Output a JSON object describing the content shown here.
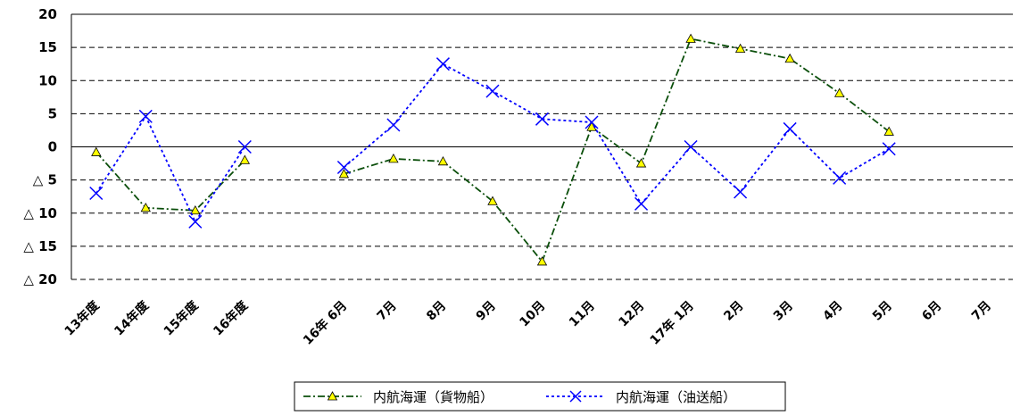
{
  "chart_data": {
    "type": "line",
    "categories": [
      "13年度",
      "14年度",
      "15年度",
      "16年度",
      "",
      "16年 6月",
      "7月",
      "8月",
      "9月",
      "10月",
      "11月",
      "12月",
      "17年 1月",
      "2月",
      "3月",
      "4月",
      "5月",
      "6月",
      "7月"
    ],
    "ylim": [
      -20,
      20
    ],
    "yticks": [
      20,
      15,
      10,
      5,
      0,
      -5,
      -10,
      -15,
      -20
    ],
    "ytick_labels": [
      "20",
      "15",
      "10",
      "5",
      "0",
      "△ 5",
      "△ 10",
      "△ 15",
      "△ 20"
    ],
    "grid": "horizontal dashed",
    "legend_position": "bottom",
    "series": [
      {
        "name": "内航海運（貨物船）",
        "color": "#0b4f0b",
        "marker": "triangle",
        "marker_color": "#ffff00",
        "values": [
          -0.8,
          -9.2,
          -9.6,
          -2.0,
          null,
          -4.1,
          -1.8,
          -2.2,
          -8.2,
          -17.3,
          3.0,
          -2.5,
          16.3,
          14.8,
          13.3,
          8.1,
          2.3,
          null,
          null
        ]
      },
      {
        "name": "内航海運（油送船）",
        "color": "#0000ff",
        "marker": "x",
        "values": [
          -7.0,
          4.6,
          -11.3,
          0.0,
          null,
          -3.1,
          3.3,
          12.5,
          8.4,
          4.2,
          3.7,
          -8.6,
          0.0,
          -6.8,
          2.7,
          -4.7,
          -0.3,
          null,
          null
        ]
      }
    ]
  }
}
